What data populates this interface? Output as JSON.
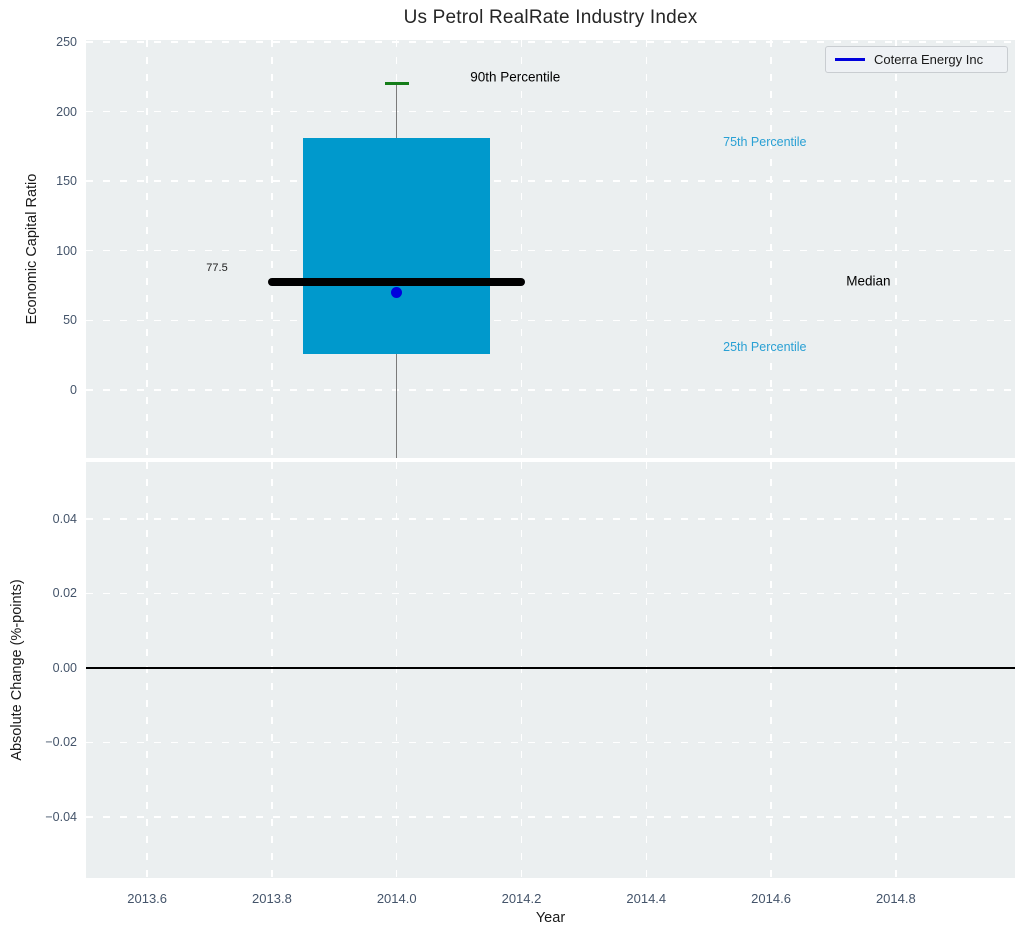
{
  "legend": {
    "label": "Coterra Energy Inc",
    "line_color": "#0000dd"
  },
  "chart_data": {
    "type": "boxplot",
    "title": "Us Petrol RealRate Industry Index",
    "xlabel": "Year",
    "grid": true,
    "legend_position": "top-right",
    "xlim": [
      2013.502,
      2014.991
    ],
    "xticks": [
      2013.6,
      2013.8,
      2014.0,
      2014.2,
      2014.4,
      2014.6,
      2014.8
    ],
    "xtick_labels": [
      "2013.6",
      "2013.8",
      "2014.0",
      "2014.2",
      "2014.4",
      "2014.6",
      "2014.8"
    ],
    "top_panel": {
      "ylabel": "Economic Capital Ratio",
      "ylim": [
        -48.9,
        251.4
      ],
      "yticks": [
        0,
        50,
        100,
        150,
        200,
        250
      ],
      "ytick_labels": [
        "0",
        "50",
        "100",
        "150",
        "200",
        "250"
      ],
      "box": {
        "x_center": 2014.0,
        "x_left": 2013.85,
        "x_right": 2014.15,
        "p90": 220,
        "p75": 181,
        "median": 77.5,
        "p25": 26,
        "whisker_low_clipped": true,
        "box_color": "#0099cc",
        "cap_color": "#147d19",
        "whisker_color": "#7a7a7a"
      },
      "median_line": {
        "x_start": 2013.8,
        "x_end": 2014.2,
        "y": 77.5,
        "color": "#000000"
      },
      "company_point": {
        "name": "Coterra Energy Inc",
        "x": 2014.0,
        "y": 70,
        "color": "#0000dd"
      },
      "annotations": [
        {
          "text": "90th Percentile",
          "x": 2014.19,
          "y": 224.5,
          "color": "#000000",
          "size": 13.5
        },
        {
          "text": "75th Percentile",
          "x": 2014.59,
          "y": 178.0,
          "color": "#29a0d4",
          "size": 12.5
        },
        {
          "text": "77.5",
          "x": 2013.712,
          "y": 87.3,
          "color": "#1a1a1a",
          "size": 11
        },
        {
          "text": "Median",
          "x": 2014.756,
          "y": 78.3,
          "color": "#000000",
          "size": 13.5
        },
        {
          "text": "25th Percentile",
          "x": 2014.59,
          "y": 31.0,
          "color": "#29a0d4",
          "size": 12.5
        }
      ]
    },
    "bottom_panel": {
      "ylabel": "Absolute Change (%-points)",
      "ylim": [
        -0.0564,
        0.0553
      ],
      "yticks": [
        0.04,
        0.02,
        0.0,
        -0.02,
        -0.04
      ],
      "ytick_labels": [
        "0.04",
        "0.02",
        "0.00",
        "−0.02",
        "−0.04"
      ],
      "zero_line": {
        "y": 0,
        "color": "#000000"
      }
    }
  }
}
